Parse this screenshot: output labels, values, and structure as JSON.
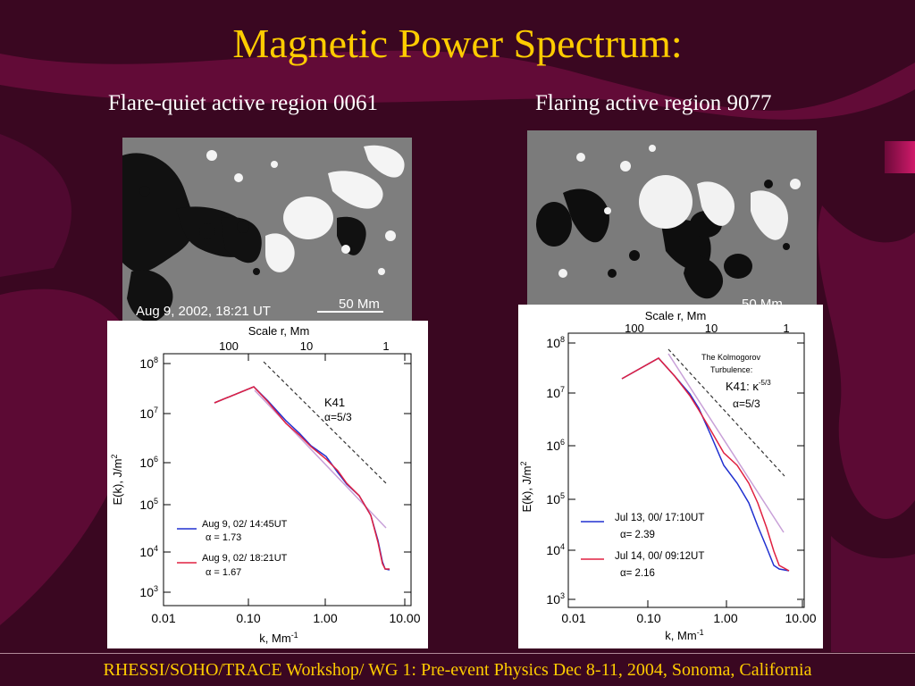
{
  "slide": {
    "title": "Magnetic Power Spectrum:",
    "footer": "RHESSI/SOHO/TRACE Workshop/ WG 1: Pre-event Physics   Dec 8-11, 2004, Sonoma, California"
  },
  "panels": [
    {
      "subtitle": "Flare-quiet active region 0061",
      "magnetogram": {
        "timestamp": "Aug 9, 2002, 18:21 UT",
        "scale_label": "50 Mm"
      },
      "plot": {
        "top_axis_title": "Scale r,  Mm",
        "top_ticks": [
          "100",
          "10",
          "1"
        ],
        "bottom_axis_title": "k, Mm",
        "bottom_axis_sup": "-1",
        "y_axis_title": "E(k), J/m",
        "y_axis_sup": "2",
        "x_ticks": [
          "0.01",
          "0.10",
          "1.00",
          "10.00"
        ],
        "y_ticks": [
          {
            "base": "10",
            "exp": "3"
          },
          {
            "base": "10",
            "exp": "4"
          },
          {
            "base": "10",
            "exp": "5"
          },
          {
            "base": "10",
            "exp": "6"
          },
          {
            "base": "10",
            "exp": "7"
          },
          {
            "base": "10",
            "exp": "8"
          }
        ],
        "reference_label": "K41",
        "reference_alpha": "α=5/3",
        "legend": [
          {
            "label": "Aug 9, 02/ 14:45UT",
            "alpha": "α = 1.73",
            "color": "#2030d0"
          },
          {
            "label": "Aug 9, 02/ 18:21UT",
            "alpha": "α = 1.67",
            "color": "#e02040"
          }
        ]
      }
    },
    {
      "subtitle": "Flaring active region 9077",
      "magnetogram": {
        "scale_label": "50 Mm"
      },
      "plot": {
        "top_axis_title": "Scale r,  Mm",
        "top_ticks": [
          "100",
          "10",
          "1"
        ],
        "bottom_axis_title": "k, Mm",
        "bottom_axis_sup": "-1",
        "y_axis_title": "E(k), J/m",
        "y_axis_sup": "2",
        "x_ticks": [
          "0.01",
          "0.10",
          "1.00",
          "10.00"
        ],
        "y_ticks": [
          {
            "base": "10",
            "exp": "3"
          },
          {
            "base": "10",
            "exp": "4"
          },
          {
            "base": "10",
            "exp": "5"
          },
          {
            "base": "10",
            "exp": "6"
          },
          {
            "base": "10",
            "exp": "7"
          },
          {
            "base": "10",
            "exp": "8"
          }
        ],
        "reference_note_1": "The Kolmogorov",
        "reference_note_2": "Turbulence:",
        "reference_label": "K41: κ",
        "reference_sup": "-5/3",
        "reference_alpha": "α=5/3",
        "legend": [
          {
            "label": "Jul 13, 00/ 17:10UT",
            "alpha": "α=  2.39",
            "color": "#2030d0"
          },
          {
            "label": "Jul 14, 00/ 09:12UT",
            "alpha": "α=  2.16",
            "color": "#e02040"
          }
        ]
      }
    }
  ],
  "colors": {
    "background": "#3a0721",
    "title": "#ffcc00",
    "wave": "#6a0c3c",
    "series_blue": "#2030d0",
    "series_red": "#e02040"
  }
}
